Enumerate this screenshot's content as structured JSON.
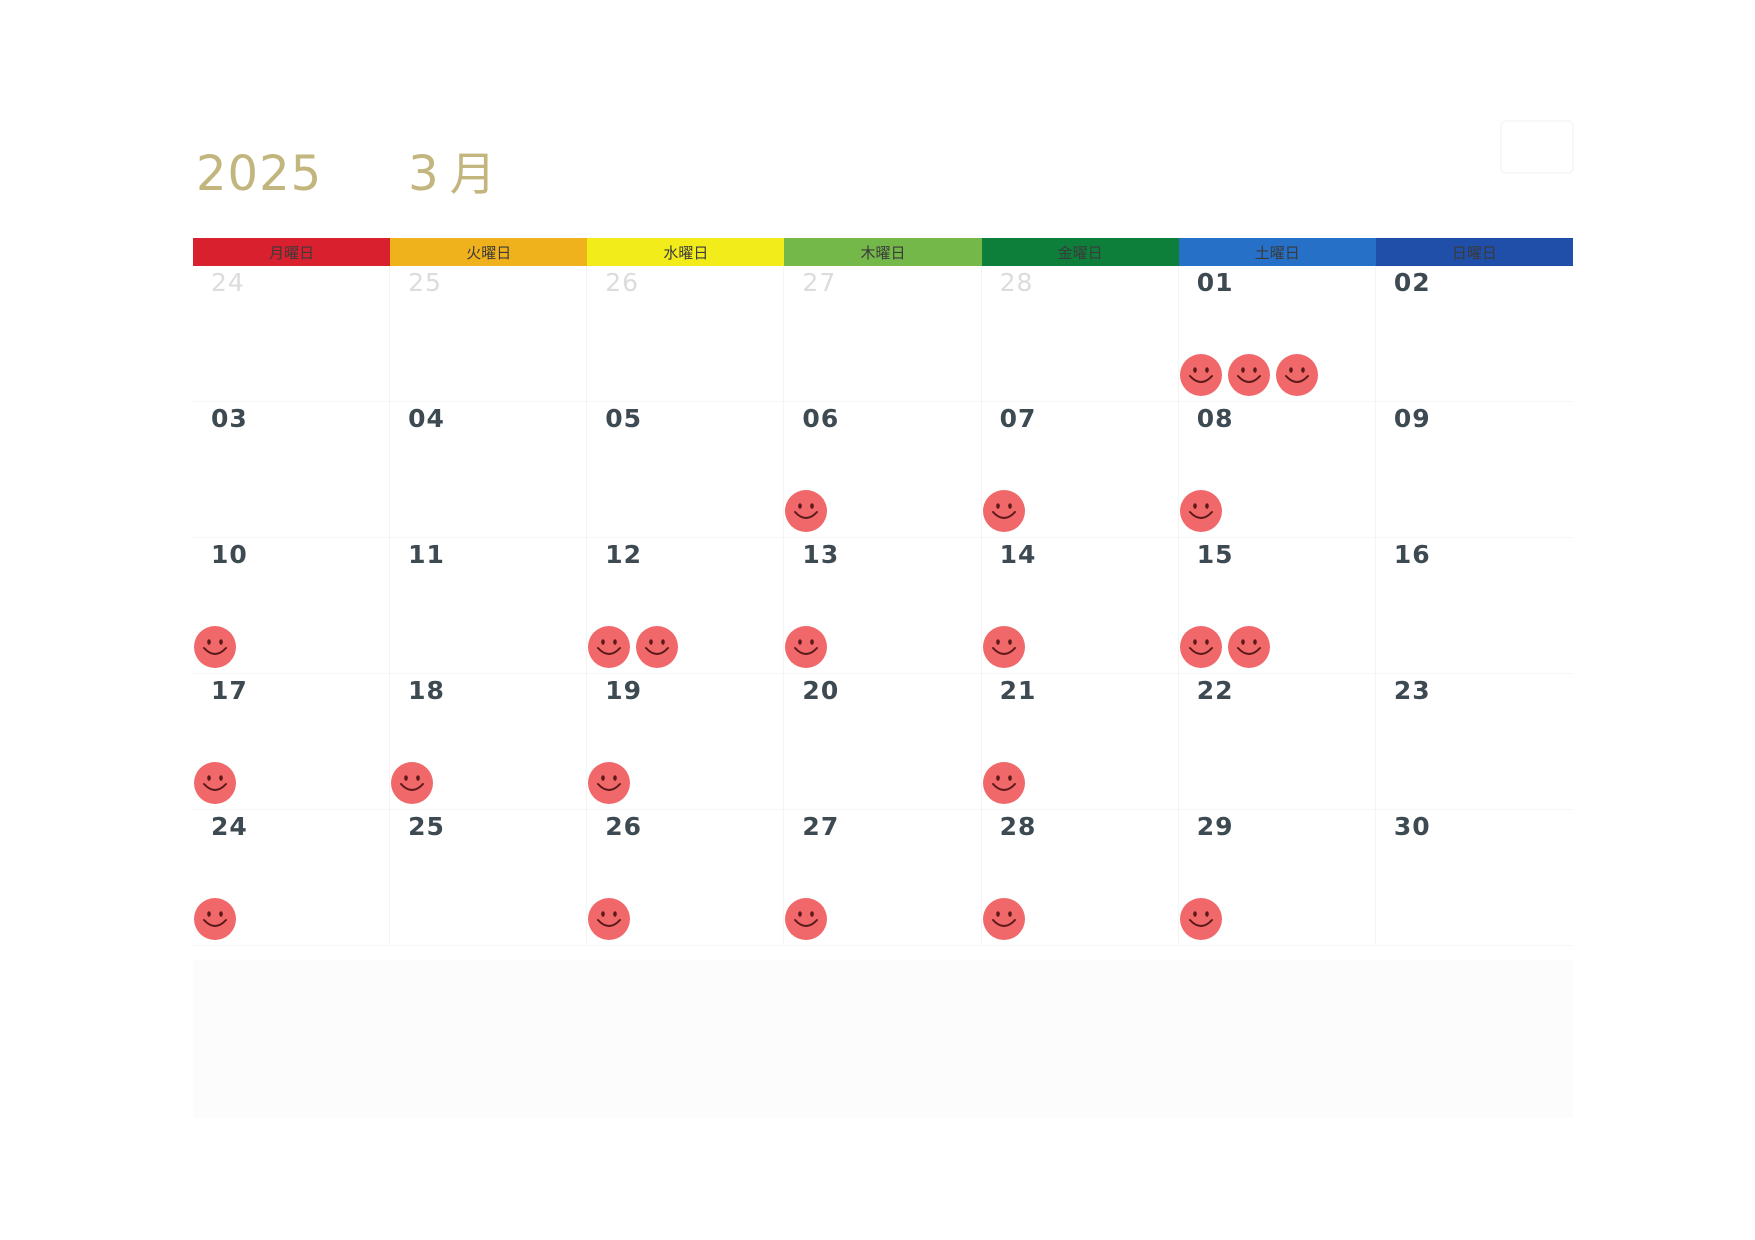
{
  "header": {
    "year": "2025",
    "month_num": "3",
    "month_unit": "月"
  },
  "weekdays": [
    {
      "label": "月曜日",
      "color": "#d9202f"
    },
    {
      "label": "火曜日",
      "color": "#f0b21c"
    },
    {
      "label": "水曜日",
      "color": "#f3ec1b"
    },
    {
      "label": "木曜日",
      "color": "#74b84a"
    },
    {
      "label": "金曜日",
      "color": "#0e7f3a"
    },
    {
      "label": "土曜日",
      "color": "#2670c8"
    },
    {
      "label": "日曜日",
      "color": "#1f4fa8"
    }
  ],
  "sticker_color": "#f0686a",
  "sticker_icon": "smiley-face",
  "weeks": [
    [
      {
        "day": "24",
        "other": true,
        "stickers": 0
      },
      {
        "day": "25",
        "other": true,
        "stickers": 0
      },
      {
        "day": "26",
        "other": true,
        "stickers": 0
      },
      {
        "day": "27",
        "other": true,
        "stickers": 0
      },
      {
        "day": "28",
        "other": true,
        "stickers": 0
      },
      {
        "day": "01",
        "other": false,
        "stickers": 3
      },
      {
        "day": "02",
        "other": false,
        "stickers": 0
      }
    ],
    [
      {
        "day": "03",
        "other": false,
        "stickers": 0
      },
      {
        "day": "04",
        "other": false,
        "stickers": 0
      },
      {
        "day": "05",
        "other": false,
        "stickers": 0
      },
      {
        "day": "06",
        "other": false,
        "stickers": 1
      },
      {
        "day": "07",
        "other": false,
        "stickers": 1
      },
      {
        "day": "08",
        "other": false,
        "stickers": 1
      },
      {
        "day": "09",
        "other": false,
        "stickers": 0
      }
    ],
    [
      {
        "day": "10",
        "other": false,
        "stickers": 1
      },
      {
        "day": "11",
        "other": false,
        "stickers": 0
      },
      {
        "day": "12",
        "other": false,
        "stickers": 2
      },
      {
        "day": "13",
        "other": false,
        "stickers": 1
      },
      {
        "day": "14",
        "other": false,
        "stickers": 1
      },
      {
        "day": "15",
        "other": false,
        "stickers": 2
      },
      {
        "day": "16",
        "other": false,
        "stickers": 0
      }
    ],
    [
      {
        "day": "17",
        "other": false,
        "stickers": 1
      },
      {
        "day": "18",
        "other": false,
        "stickers": 1
      },
      {
        "day": "19",
        "other": false,
        "stickers": 1
      },
      {
        "day": "20",
        "other": false,
        "stickers": 0
      },
      {
        "day": "21",
        "other": false,
        "stickers": 1
      },
      {
        "day": "22",
        "other": false,
        "stickers": 0
      },
      {
        "day": "23",
        "other": false,
        "stickers": 0
      }
    ],
    [
      {
        "day": "24",
        "other": false,
        "stickers": 1
      },
      {
        "day": "25",
        "other": false,
        "stickers": 0
      },
      {
        "day": "26",
        "other": false,
        "stickers": 1
      },
      {
        "day": "27",
        "other": false,
        "stickers": 1
      },
      {
        "day": "28",
        "other": false,
        "stickers": 1
      },
      {
        "day": "29",
        "other": false,
        "stickers": 1
      },
      {
        "day": "30",
        "other": false,
        "stickers": 0
      }
    ]
  ]
}
